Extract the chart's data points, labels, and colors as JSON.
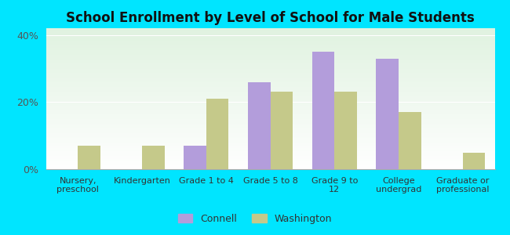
{
  "title": "School Enrollment by Level of School for Male Students",
  "categories": [
    "Nursery,\npreschool",
    "Kindergarten",
    "Grade 1 to 4",
    "Grade 5 to 8",
    "Grade 9 to\n12",
    "College\nundergrad",
    "Graduate or\nprofessional"
  ],
  "connell": [
    0,
    0,
    7,
    26,
    35,
    33,
    0
  ],
  "washington": [
    7,
    7,
    21,
    23,
    23,
    17,
    5
  ],
  "connell_color": "#b39ddb",
  "washington_color": "#c5c98a",
  "ylim": [
    0,
    42
  ],
  "yticks": [
    0,
    20,
    40
  ],
  "ytick_labels": [
    "0%",
    "20%",
    "40%"
  ],
  "bg_color": "#00e5ff",
  "legend_connell": "Connell",
  "legend_washington": "Washington",
  "bar_width": 0.35
}
